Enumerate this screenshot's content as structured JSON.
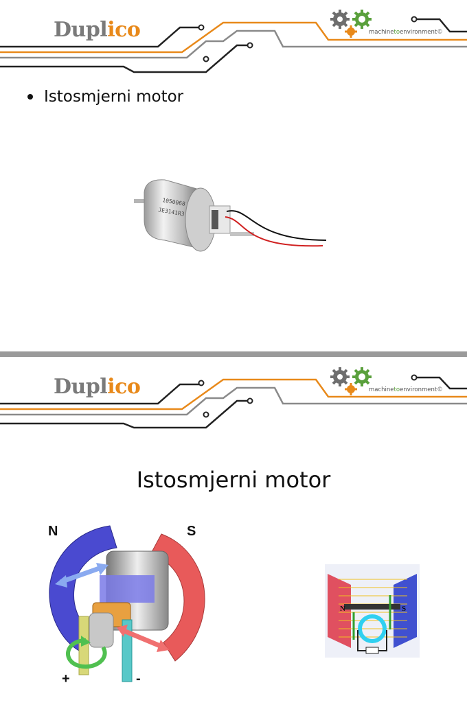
{
  "brand": {
    "logo_part1": "Dupl",
    "logo_part2": "i",
    "logo_part3": "co",
    "partner_text_1": "machine",
    "partner_text_2": "to",
    "partner_text_3": "environment",
    "partner_mark": "©",
    "colors": {
      "orange": "#e8891a",
      "grey": "#7a7a7a",
      "green": "#5aa03c",
      "dark": "#222222"
    }
  },
  "slide1": {
    "bullet": "Istosmjerni motor",
    "motor_label_line1": "1050068",
    "motor_label_line2": "JE3141R3"
  },
  "slide2": {
    "title": "Istosmjerni motor",
    "pole_north": "N",
    "pole_south": "S",
    "terminal_plus": "+",
    "terminal_minus": "-",
    "small_pole_north": "N",
    "small_pole_south": "S"
  }
}
